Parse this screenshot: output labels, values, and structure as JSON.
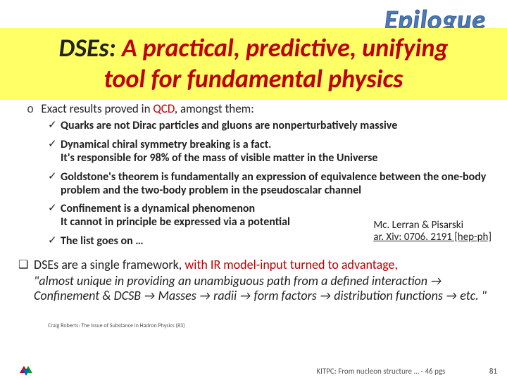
{
  "epilogue": "Epilogue",
  "title": {
    "line1_pre": "DSEs: ",
    "line1_mid": "A practical, predictive, ",
    "line1_end": "unifying",
    "line2": "tool for fundamental physics"
  },
  "intro": {
    "pre": "Exact results proved in ",
    "qcd": "QCD",
    "post": ", amongst them:"
  },
  "checks": {
    "c1": "Quarks are not Dirac particles and gluons are nonperturbatively massive",
    "c2a": "Dynamical chiral symmetry breaking is a fact.",
    "c2b": "It's responsible for 98% of the mass of visible matter in the Universe",
    "c3": "Goldstone's theorem is fundamentally an expression of equivalence between the one-body problem and the two-body problem in the pseudoscalar channel",
    "c4a": "Confinement is a dynamical phenomenon",
    "c4b": "It cannot in principle be expressed via a potential",
    "c5": "The list goes on …"
  },
  "ref": {
    "authors": "Mc. Lerran & Pisarski",
    "cite": "ar. Xiv: 0706. 2191 [hep-ph]"
  },
  "square": {
    "pre": "DSEs are a single framework, ",
    "mid": "with IR model-input turned to advantage,",
    "quote": "\"almost unique in providing an unambiguous path from a defined interaction → Confinement & DCSB → Masses → radii → form factors → distribution functions → etc. \""
  },
  "attrib": "Craig Roberts: The Issue of Substance in Hadron Physics (83)",
  "footer": {
    "text": "KITPC: From nucleon structure … - 46 pgs",
    "page": "81"
  },
  "colors": {
    "red": "#c00000",
    "yellow": "#ffff66",
    "blue": "#4a7ab8"
  }
}
